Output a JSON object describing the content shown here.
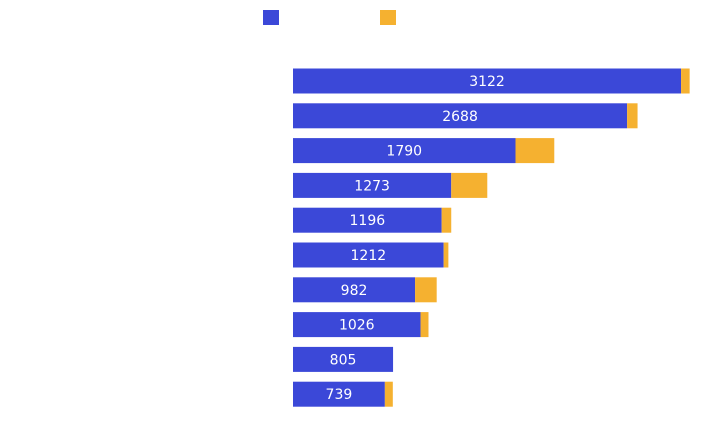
{
  "chart_data": {
    "type": "bar",
    "orientation": "horizontal",
    "stacked": true,
    "title": "",
    "xlabel": "",
    "ylabel": "",
    "legend_position": "top",
    "grid": false,
    "axes_visible": false,
    "colors": [
      "#3b48d8",
      "#f5b130"
    ],
    "categories": [
      "",
      "",
      "",
      "",
      "",
      "",
      "",
      "",
      "",
      ""
    ],
    "series": [
      {
        "values": [
          3122,
          2688,
          1790,
          1273,
          1196,
          1212,
          982,
          1026,
          805,
          739
        ],
        "labels": [
          "3122",
          "2688",
          "1790",
          "1273",
          "1196",
          "1212",
          "982",
          "1026",
          "805",
          "739"
        ]
      },
      {
        "values": [
          69,
          84,
          312,
          290,
          77,
          38,
          174,
          64,
          0,
          64
        ]
      }
    ]
  }
}
